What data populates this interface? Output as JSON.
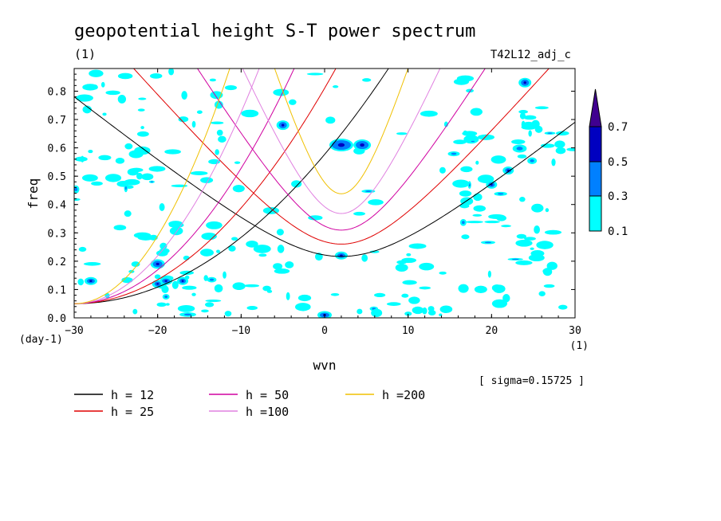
{
  "chart_data": {
    "type": "heatmap",
    "title": "geopotential height S-T power spectrum",
    "subtitle_left": "(1)",
    "subtitle_right": "T42L12_adj_c",
    "xlabel": "wvn",
    "ylabel": "freq",
    "x_unit": "(1)",
    "y_unit": "(day-1)",
    "xlim": [
      -30,
      30
    ],
    "ylim": [
      0,
      0.88
    ],
    "xticks": [
      -30,
      -20,
      -10,
      0,
      10,
      20,
      30
    ],
    "yticks": [
      0.0,
      0.1,
      0.2,
      0.3,
      0.4,
      0.5,
      0.6,
      0.7,
      0.8
    ],
    "ytick_labels": [
      "0.0",
      "0.1",
      "0.2",
      "0.3",
      "0.4",
      "0.5",
      "0.6",
      "0.7",
      "0.8"
    ],
    "annotation": "[ sigma=0.15725 ]",
    "colorbar": {
      "levels": [
        0.1,
        0.3,
        0.5,
        0.7
      ],
      "labels": [
        "0.1",
        "0.3",
        "0.5",
        "0.7"
      ],
      "colors": [
        "#00ffff",
        "#0080ff",
        "#0000c0",
        "#400090"
      ]
    },
    "series": [
      {
        "name": "h = 12",
        "color": "#000000",
        "h": 12
      },
      {
        "name": "h = 25",
        "color": "#e00000",
        "h": 25
      },
      {
        "name": "h = 50",
        "color": "#d000a0",
        "h": 50
      },
      {
        "name": "h =100",
        "color": "#e080e0",
        "h": 100
      },
      {
        "name": "h =200",
        "color": "#f0c000",
        "h": 200
      }
    ]
  }
}
